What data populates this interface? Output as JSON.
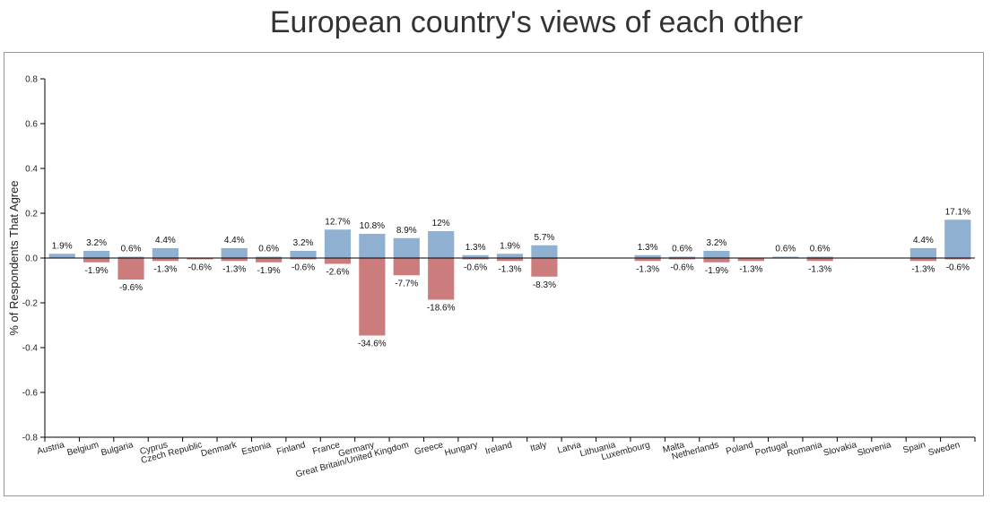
{
  "chart_data": {
    "type": "bar",
    "title": "European country's views of each other",
    "xlabel": "",
    "ylabel": "% of Respondents That Agree",
    "ylim": [
      -0.8,
      0.8
    ],
    "yticks": [
      0.8,
      0.6,
      0.4,
      0.2,
      0.0,
      -0.2,
      -0.4,
      -0.6,
      -0.8
    ],
    "ytick_labels": [
      "0.8",
      "0.6",
      "0.4",
      "0.2",
      "0.0",
      "-0.2",
      "-0.4",
      "-0.6",
      "-0.8"
    ],
    "grid": false,
    "legend": "none",
    "categories": [
      "Austria",
      "Belgium",
      "Bulgaria",
      "Cyprus",
      "Czech Republic",
      "Denmark",
      "Estonia",
      "Finland",
      "France",
      "Germany",
      "Great Britain/United Kingdom",
      "Greece",
      "Hungary",
      "Ireland",
      "Italy",
      "Latvia",
      "Lithuania",
      "Luxembourg",
      "Malta",
      "Netherlands",
      "Poland",
      "Portugal",
      "Romania",
      "Slovakia",
      "Slovenia",
      "Spain",
      "Sweden"
    ],
    "series": [
      {
        "color": "#8fb0d0",
        "values": [
          0.019,
          0.032,
          0.006,
          0.044,
          null,
          0.044,
          0.006,
          0.032,
          0.127,
          0.108,
          0.089,
          0.12,
          0.013,
          0.019,
          0.057,
          null,
          null,
          0.013,
          0.006,
          0.032,
          null,
          0.006,
          0.006,
          null,
          null,
          0.044,
          0.171
        ],
        "labels": [
          "1.9%",
          "3.2%",
          "0.6%",
          "4.4%",
          "",
          "4.4%",
          "0.6%",
          "3.2%",
          "12.7%",
          "10.8%",
          "8.9%",
          "12%",
          "1.3%",
          "1.9%",
          "5.7%",
          "",
          "",
          "1.3%",
          "0.6%",
          "3.2%",
          "",
          "0.6%",
          "0.6%",
          "",
          "",
          "4.4%",
          "17.1%"
        ]
      },
      {
        "color": "#cc7c7c",
        "values": [
          null,
          -0.019,
          -0.096,
          -0.013,
          -0.006,
          -0.013,
          -0.019,
          -0.006,
          -0.026,
          -0.346,
          -0.077,
          -0.186,
          -0.006,
          -0.013,
          -0.083,
          null,
          null,
          -0.013,
          -0.006,
          -0.019,
          -0.013,
          null,
          -0.013,
          null,
          null,
          -0.013,
          -0.006
        ],
        "labels": [
          "",
          "-1.9%",
          "-9.6%",
          "-1.3%",
          "-0.6%",
          "-1.3%",
          "-1.9%",
          "-0.6%",
          "-2.6%",
          "-34.6%",
          "-7.7%",
          "-18.6%",
          "-0.6%",
          "-1.3%",
          "-8.3%",
          "",
          "",
          "-1.3%",
          "-0.6%",
          "-1.9%",
          "-1.3%",
          "",
          "-1.3%",
          "",
          "",
          "-1.3%",
          "-0.6%"
        ]
      }
    ]
  }
}
